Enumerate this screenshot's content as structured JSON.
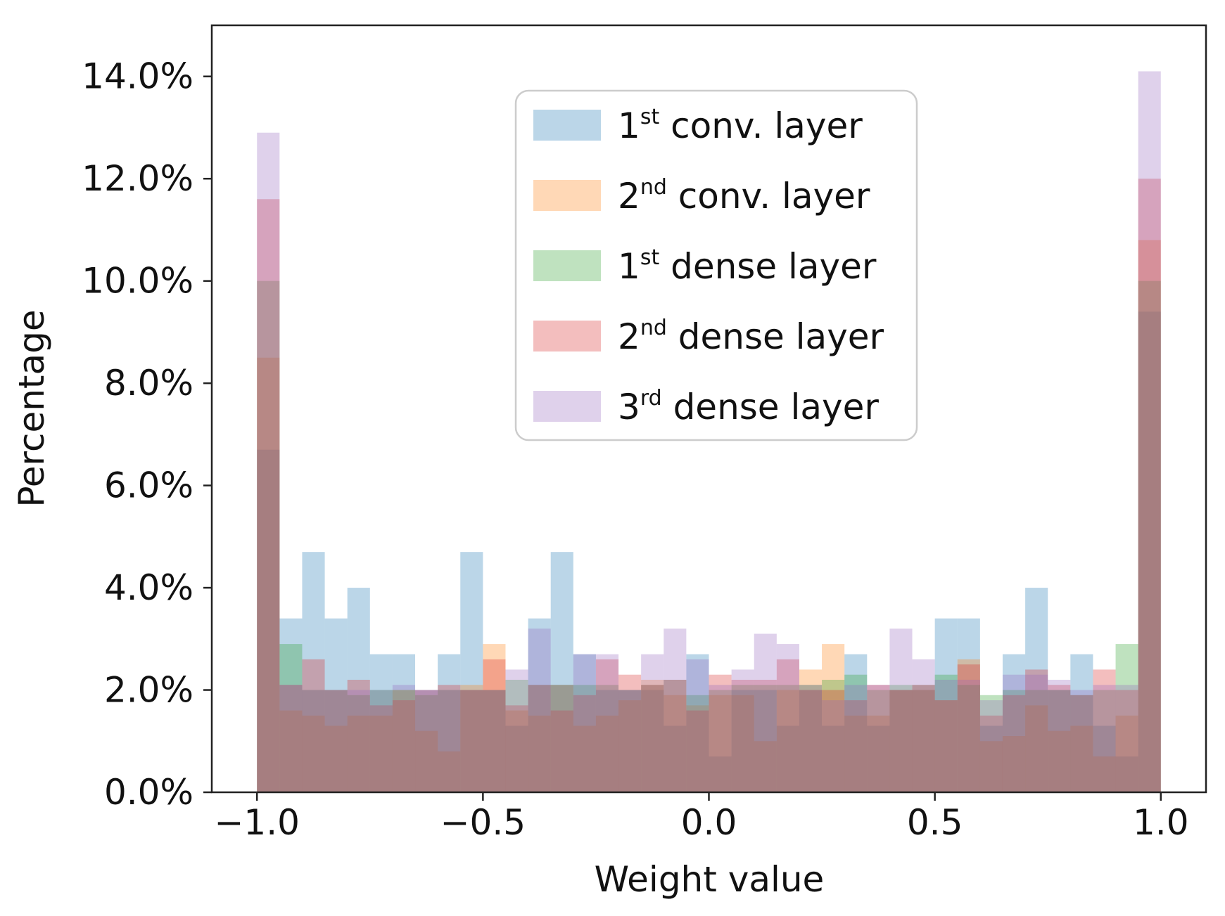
{
  "chart_data": {
    "type": "histogram",
    "title": "",
    "xlabel": "Weight value",
    "ylabel": "Percentage",
    "xlim": [
      -1.1,
      1.1
    ],
    "ylim": [
      0,
      15
    ],
    "grid": false,
    "legend_position": "upper-center",
    "bin_edges": [
      -1.0,
      -0.95,
      -0.9,
      -0.85,
      -0.8,
      -0.75,
      -0.7,
      -0.65,
      -0.6,
      -0.55,
      -0.5,
      -0.45,
      -0.4,
      -0.35,
      -0.3,
      -0.25,
      -0.2,
      -0.15,
      -0.1,
      -0.05,
      0.0,
      0.05,
      0.1,
      0.15,
      0.2,
      0.25,
      0.3,
      0.35,
      0.4,
      0.45,
      0.5,
      0.55,
      0.6,
      0.65,
      0.7,
      0.75,
      0.8,
      0.85,
      0.9,
      0.95,
      1.0
    ],
    "x_ticks": [
      {
        "value": -1.0,
        "label": "−1.0"
      },
      {
        "value": -0.5,
        "label": "−0.5"
      },
      {
        "value": 0.0,
        "label": "0.0"
      },
      {
        "value": 0.5,
        "label": "0.5"
      },
      {
        "value": 1.0,
        "label": "1.0"
      }
    ],
    "y_ticks": [
      {
        "value": 0,
        "label": "0.0%"
      },
      {
        "value": 2,
        "label": "2.0%"
      },
      {
        "value": 4,
        "label": "4.0%"
      },
      {
        "value": 6,
        "label": "6.0%"
      },
      {
        "value": 8,
        "label": "8.0%"
      },
      {
        "value": 10,
        "label": "10.0%"
      },
      {
        "value": 12,
        "label": "12.0%"
      },
      {
        "value": 14,
        "label": "14.0%"
      }
    ],
    "series": [
      {
        "name": "1st conv. layer",
        "label_base": "1",
        "label_sup": "st",
        "label_rest": " conv. layer",
        "color": "#1f77b4",
        "values": [
          6.7,
          3.4,
          4.7,
          3.4,
          4.0,
          2.7,
          2.7,
          2.0,
          2.7,
          4.7,
          2.0,
          1.3,
          3.4,
          4.7,
          2.7,
          2.0,
          2.0,
          2.0,
          1.3,
          2.7,
          0.7,
          2.0,
          2.0,
          1.3,
          2.0,
          1.3,
          2.7,
          1.3,
          2.0,
          2.0,
          3.4,
          3.4,
          1.3,
          2.7,
          4.0,
          2.0,
          2.7,
          1.3,
          0.7,
          9.4
        ]
      },
      {
        "name": "2nd conv. layer",
        "label_base": "2",
        "label_sup": "nd",
        "label_rest": " conv. layer",
        "color": "#ff7f0e",
        "values": [
          8.5,
          1.6,
          1.5,
          1.3,
          1.5,
          1.5,
          2.0,
          1.2,
          0.8,
          2.1,
          2.9,
          1.6,
          1.5,
          2.1,
          1.3,
          1.5,
          1.8,
          2.2,
          1.9,
          1.7,
          1.9,
          1.9,
          1.0,
          2.0,
          2.4,
          2.9,
          1.5,
          1.5,
          2.0,
          2.0,
          1.8,
          2.6,
          1.0,
          1.1,
          1.7,
          1.2,
          1.3,
          0.7,
          1.5,
          10.8
        ]
      },
      {
        "name": "1st dense layer",
        "label_base": "1",
        "label_sup": "st",
        "label_rest": " dense layer",
        "color": "#2ca02c",
        "values": [
          10.0,
          2.9,
          2.0,
          2.0,
          1.9,
          2.0,
          2.0,
          1.9,
          2.0,
          2.0,
          2.0,
          2.2,
          2.1,
          2.1,
          2.1,
          2.1,
          2.0,
          2.1,
          2.2,
          1.9,
          2.0,
          2.1,
          2.1,
          2.1,
          2.1,
          2.2,
          2.3,
          2.0,
          2.1,
          2.1,
          2.3,
          2.1,
          1.9,
          2.0,
          2.0,
          2.0,
          1.9,
          2.0,
          2.9,
          10.0
        ]
      },
      {
        "name": "2nd dense layer",
        "label_base": "2",
        "label_sup": "nd",
        "label_rest": " dense layer",
        "color": "#d62728",
        "values": [
          11.6,
          2.1,
          2.6,
          2.0,
          2.2,
          1.7,
          1.8,
          2.0,
          2.1,
          2.0,
          2.6,
          1.7,
          2.1,
          1.6,
          1.9,
          2.6,
          2.3,
          2.1,
          2.2,
          1.6,
          2.3,
          2.2,
          2.2,
          2.6,
          2.0,
          2.0,
          1.8,
          2.1,
          2.0,
          2.1,
          1.8,
          2.5,
          1.5,
          1.9,
          2.4,
          2.1,
          1.9,
          2.4,
          2.0,
          12.0
        ]
      },
      {
        "name": "3rd dense layer",
        "label_base": "3",
        "label_sup": "rd",
        "label_rest": " dense layer",
        "color": "#9467bd",
        "values": [
          12.9,
          2.1,
          2.0,
          2.0,
          2.0,
          2.0,
          2.1,
          2.0,
          2.0,
          2.0,
          2.0,
          2.4,
          3.2,
          2.1,
          2.7,
          2.7,
          2.0,
          2.7,
          3.2,
          2.6,
          2.1,
          2.4,
          3.1,
          2.9,
          2.1,
          1.8,
          2.1,
          2.1,
          3.2,
          2.6,
          2.2,
          2.2,
          1.8,
          2.3,
          2.3,
          2.2,
          2.0,
          2.1,
          2.1,
          14.1
        ]
      }
    ]
  }
}
